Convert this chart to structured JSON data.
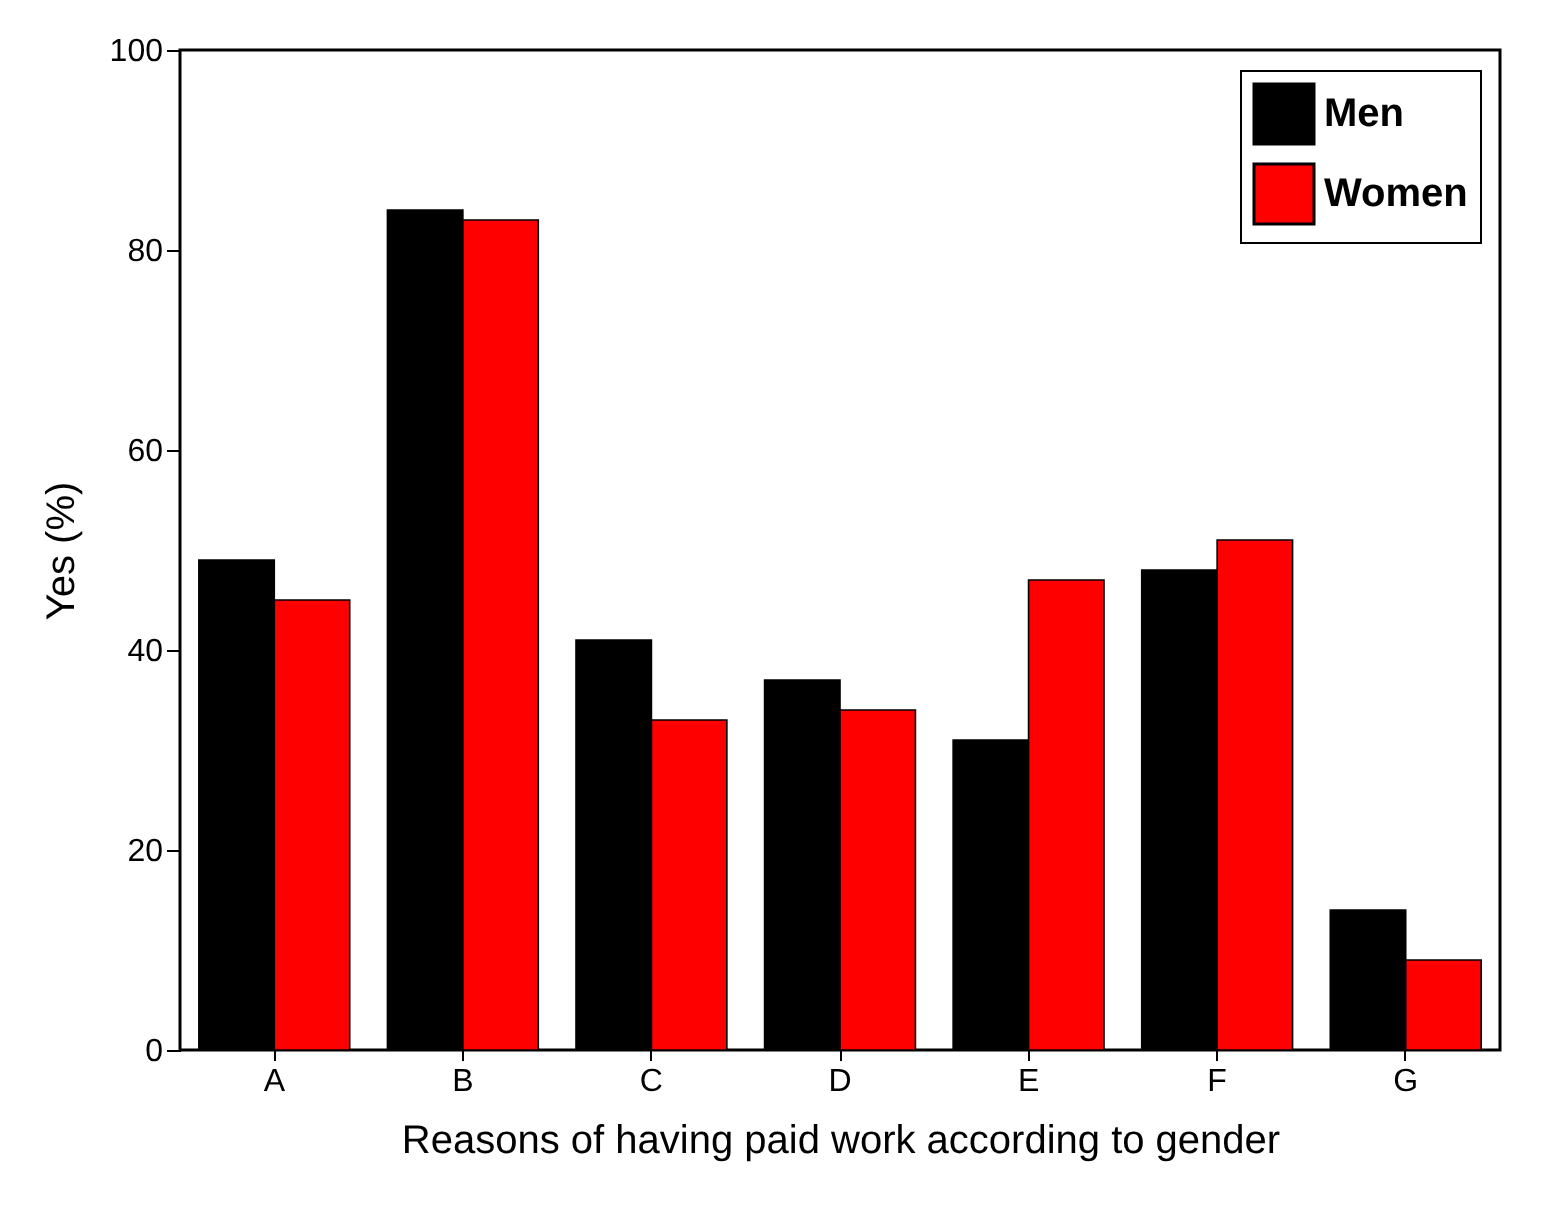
{
  "chart_data": {
    "type": "bar",
    "xlabel": "Reasons of having paid work according to gender",
    "ylabel": "Yes (%)",
    "categories": [
      "A",
      "B",
      "C",
      "D",
      "E",
      "F",
      "G"
    ],
    "series": [
      {
        "name": "Men",
        "color": "#000000",
        "values": [
          49,
          84,
          41,
          37,
          31,
          48,
          14
        ]
      },
      {
        "name": "Women",
        "color": "#ff0000",
        "values": [
          45,
          83,
          33,
          34,
          47,
          51,
          9
        ]
      }
    ],
    "ylim": [
      0,
      100
    ],
    "yticks": [
      0,
      20,
      40,
      60,
      80,
      100
    ],
    "grid": false,
    "legend": "top right"
  }
}
